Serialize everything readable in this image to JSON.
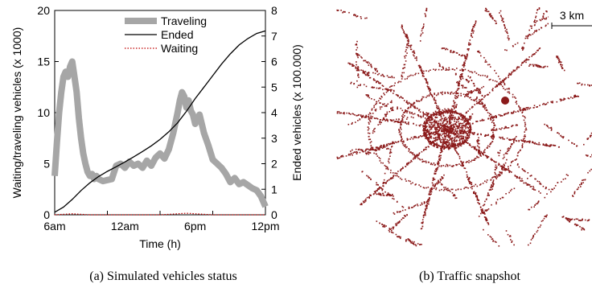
{
  "figure": {
    "panel_a_caption": "(a)  Simulated vehicles status",
    "panel_b_caption": "(b)  Traffic snapshot"
  },
  "chart_data": [
    {
      "type": "line",
      "xlabel": "Time (h)",
      "ylabel": "Waiting/traveling vehicles (x 1000)",
      "y2label": "Ended vehicles (x 100.000)",
      "x_ticks": [
        "6am",
        "12am",
        "6pm",
        "12pm"
      ],
      "x_range_hours": [
        0,
        24
      ],
      "ylim": [
        0,
        20
      ],
      "y_ticks": [
        0,
        5,
        10,
        15,
        20
      ],
      "y2lim": [
        0,
        8
      ],
      "y2_ticks": [
        0,
        1,
        2,
        3,
        4,
        5,
        6,
        7,
        8
      ],
      "grid": false,
      "legend_position": "top-center",
      "series": [
        {
          "name": "Traveling",
          "axis": "left",
          "style": "thick-gray",
          "color": "#a6a6a6",
          "x": [
            0,
            0.25,
            0.5,
            0.75,
            1,
            1.25,
            1.5,
            1.75,
            2,
            2.25,
            2.5,
            2.75,
            3,
            3.25,
            3.5,
            3.75,
            4,
            4.25,
            4.5,
            4.75,
            5,
            5.5,
            6,
            6.5,
            7,
            7.5,
            8,
            8.5,
            9,
            9.5,
            10,
            10.5,
            11,
            11.5,
            12,
            12.5,
            13,
            13.5,
            14,
            14.25,
            14.5,
            14.75,
            15,
            15.25,
            15.5,
            15.75,
            16,
            16.5,
            17,
            17.5,
            18,
            18.5,
            19,
            19.5,
            20,
            20.5,
            21,
            21.5,
            22,
            22.5,
            23,
            23.5,
            24
          ],
          "values": [
            3.8,
            7.0,
            10.0,
            12.0,
            13.5,
            14.0,
            13.5,
            14.5,
            15.0,
            13.5,
            12.0,
            9.5,
            7.5,
            6.0,
            5.0,
            4.2,
            3.8,
            4.0,
            3.5,
            3.8,
            3.5,
            3.3,
            3.4,
            3.5,
            4.8,
            5.0,
            4.6,
            5.2,
            4.8,
            5.0,
            4.6,
            5.3,
            4.8,
            5.6,
            6.0,
            5.5,
            6.4,
            8.0,
            10.0,
            11.2,
            12.0,
            11.6,
            10.5,
            11.2,
            10.2,
            9.8,
            8.9,
            9.8,
            8.0,
            6.8,
            5.4,
            5.0,
            4.6,
            4.0,
            3.2,
            3.6,
            3.0,
            3.2,
            2.9,
            2.6,
            2.4,
            1.8,
            0.8
          ]
        },
        {
          "name": "Ended",
          "axis": "right",
          "style": "solid-black",
          "color": "#000000",
          "x": [
            0,
            1,
            2,
            3,
            4,
            5,
            6,
            7,
            8,
            9,
            10,
            11,
            12,
            13,
            14,
            15,
            16,
            17,
            18,
            19,
            20,
            21,
            22,
            23,
            24
          ],
          "values": [
            0.1,
            0.3,
            0.6,
            0.95,
            1.25,
            1.5,
            1.7,
            1.88,
            2.07,
            2.27,
            2.48,
            2.7,
            2.95,
            3.25,
            3.6,
            4.05,
            4.55,
            5.0,
            5.45,
            5.9,
            6.3,
            6.65,
            6.9,
            7.1,
            7.2
          ]
        },
        {
          "name": "Waiting",
          "axis": "left",
          "style": "dotted-red",
          "color": "#c00000",
          "x": [
            0,
            1,
            2,
            3,
            4,
            6,
            8,
            10,
            12,
            13,
            14,
            15,
            16,
            17,
            18,
            20,
            22,
            24
          ],
          "values": [
            0.0,
            0.05,
            0.1,
            0.05,
            0.0,
            0.0,
            0.0,
            0.0,
            0.0,
            0.05,
            0.1,
            0.15,
            0.1,
            0.05,
            0.0,
            0.0,
            0.0,
            0.0
          ]
        }
      ]
    },
    {
      "type": "map",
      "scale_label": "3 km",
      "dot_color": "#8b1a1a"
    }
  ]
}
